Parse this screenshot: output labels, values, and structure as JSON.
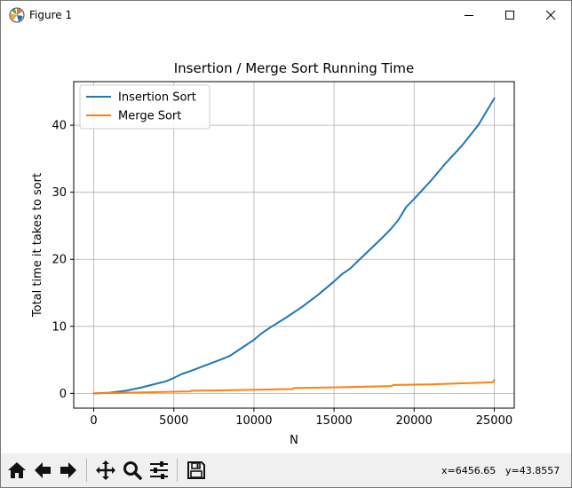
{
  "window": {
    "title": "Figure 1"
  },
  "chart_data": {
    "type": "line",
    "title": "Insertion / Merge Sort Running Time",
    "xlabel": "N",
    "ylabel": "Total time it takes to sort",
    "xlim": [
      -1250,
      26250
    ],
    "ylim": [
      -2.2,
      46.5
    ],
    "xticks": [
      0,
      5000,
      10000,
      15000,
      20000,
      25000
    ],
    "yticks": [
      0,
      10,
      20,
      30,
      40
    ],
    "grid": true,
    "legend_position": "top-left",
    "series": [
      {
        "name": "Insertion Sort",
        "color": "#1f77b4",
        "x": [
          0,
          1000,
          2000,
          3000,
          4000,
          4500,
          5000,
          5500,
          6000,
          7000,
          8000,
          8500,
          9000,
          9500,
          10000,
          10500,
          11000,
          12000,
          13000,
          14000,
          15000,
          15500,
          16000,
          17000,
          18000,
          18500,
          19000,
          19500,
          20000,
          21000,
          22000,
          23000,
          24000,
          25000
        ],
        "y": [
          0,
          0.1,
          0.4,
          0.9,
          1.5,
          1.8,
          2.3,
          2.9,
          3.3,
          4.2,
          5.1,
          5.6,
          6.4,
          7.2,
          8.0,
          9.0,
          9.8,
          11.3,
          12.9,
          14.7,
          16.7,
          17.8,
          18.6,
          20.9,
          23.2,
          24.4,
          25.8,
          27.8,
          29.0,
          31.6,
          34.4,
          37.0,
          40.0,
          44.0
        ]
      },
      {
        "name": "Merge Sort",
        "color": "#ff7f0e",
        "x": [
          0,
          2000,
          4000,
          6000,
          6100,
          8000,
          10000,
          12400,
          12500,
          15000,
          17000,
          18600,
          18700,
          21000,
          23000,
          24900,
          25000
        ],
        "y": [
          0,
          0.1,
          0.2,
          0.3,
          0.4,
          0.45,
          0.55,
          0.65,
          0.8,
          0.9,
          1.0,
          1.1,
          1.25,
          1.35,
          1.5,
          1.65,
          2.0
        ]
      }
    ]
  },
  "toolbar": {
    "buttons": [
      {
        "name": "home-button",
        "icon": "home-icon"
      },
      {
        "name": "back-button",
        "icon": "arrow-left-icon"
      },
      {
        "name": "forward-button",
        "icon": "arrow-right-icon"
      },
      {
        "name": "pan-button",
        "icon": "move-icon"
      },
      {
        "name": "zoom-button",
        "icon": "magnifier-icon"
      },
      {
        "name": "configure-subplots-button",
        "icon": "sliders-icon"
      },
      {
        "name": "save-button",
        "icon": "floppy-icon"
      }
    ],
    "x_readout": "x=6456.65",
    "y_readout": "y=43.8557"
  }
}
